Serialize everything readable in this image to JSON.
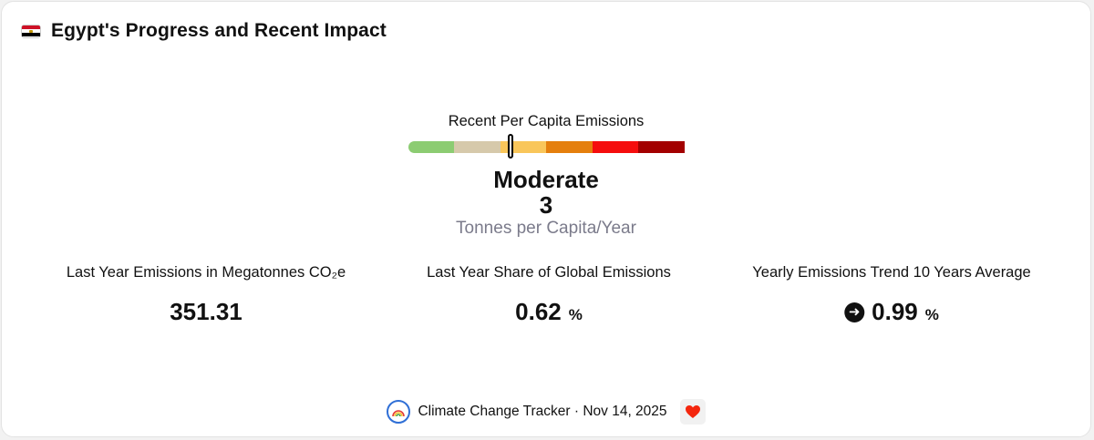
{
  "header": {
    "title": "Egypt's Progress and Recent Impact",
    "flag_icon": "egypt-flag-icon"
  },
  "gauge": {
    "label": "Recent Per Capita Emissions",
    "level": "Moderate",
    "value": "3",
    "unit": "Tonnes per Capita/Year",
    "marker_fraction": 0.37,
    "segment_colors": [
      "#8ccc72",
      "#d6c9ab",
      "#f9c65a",
      "#e57f0d",
      "#f50d0d",
      "#a30000"
    ]
  },
  "stats": [
    {
      "label": "Last Year Emissions in Megatonnes CO₂e",
      "value": "351.31",
      "suffix": ""
    },
    {
      "label": "Last Year Share of Global Emissions",
      "value": "0.62",
      "suffix": "%"
    },
    {
      "label": "Yearly Emissions Trend 10 Years Average",
      "value": "0.99",
      "suffix": "%",
      "icon": "arrow-right-circle-icon"
    }
  ],
  "footer": {
    "text": "Climate Change Tracker · Nov 14, 2025",
    "logo_icon": "rainbow-logo-icon",
    "heart_icon": "heart-icon",
    "heart_color": "#f4260d"
  }
}
